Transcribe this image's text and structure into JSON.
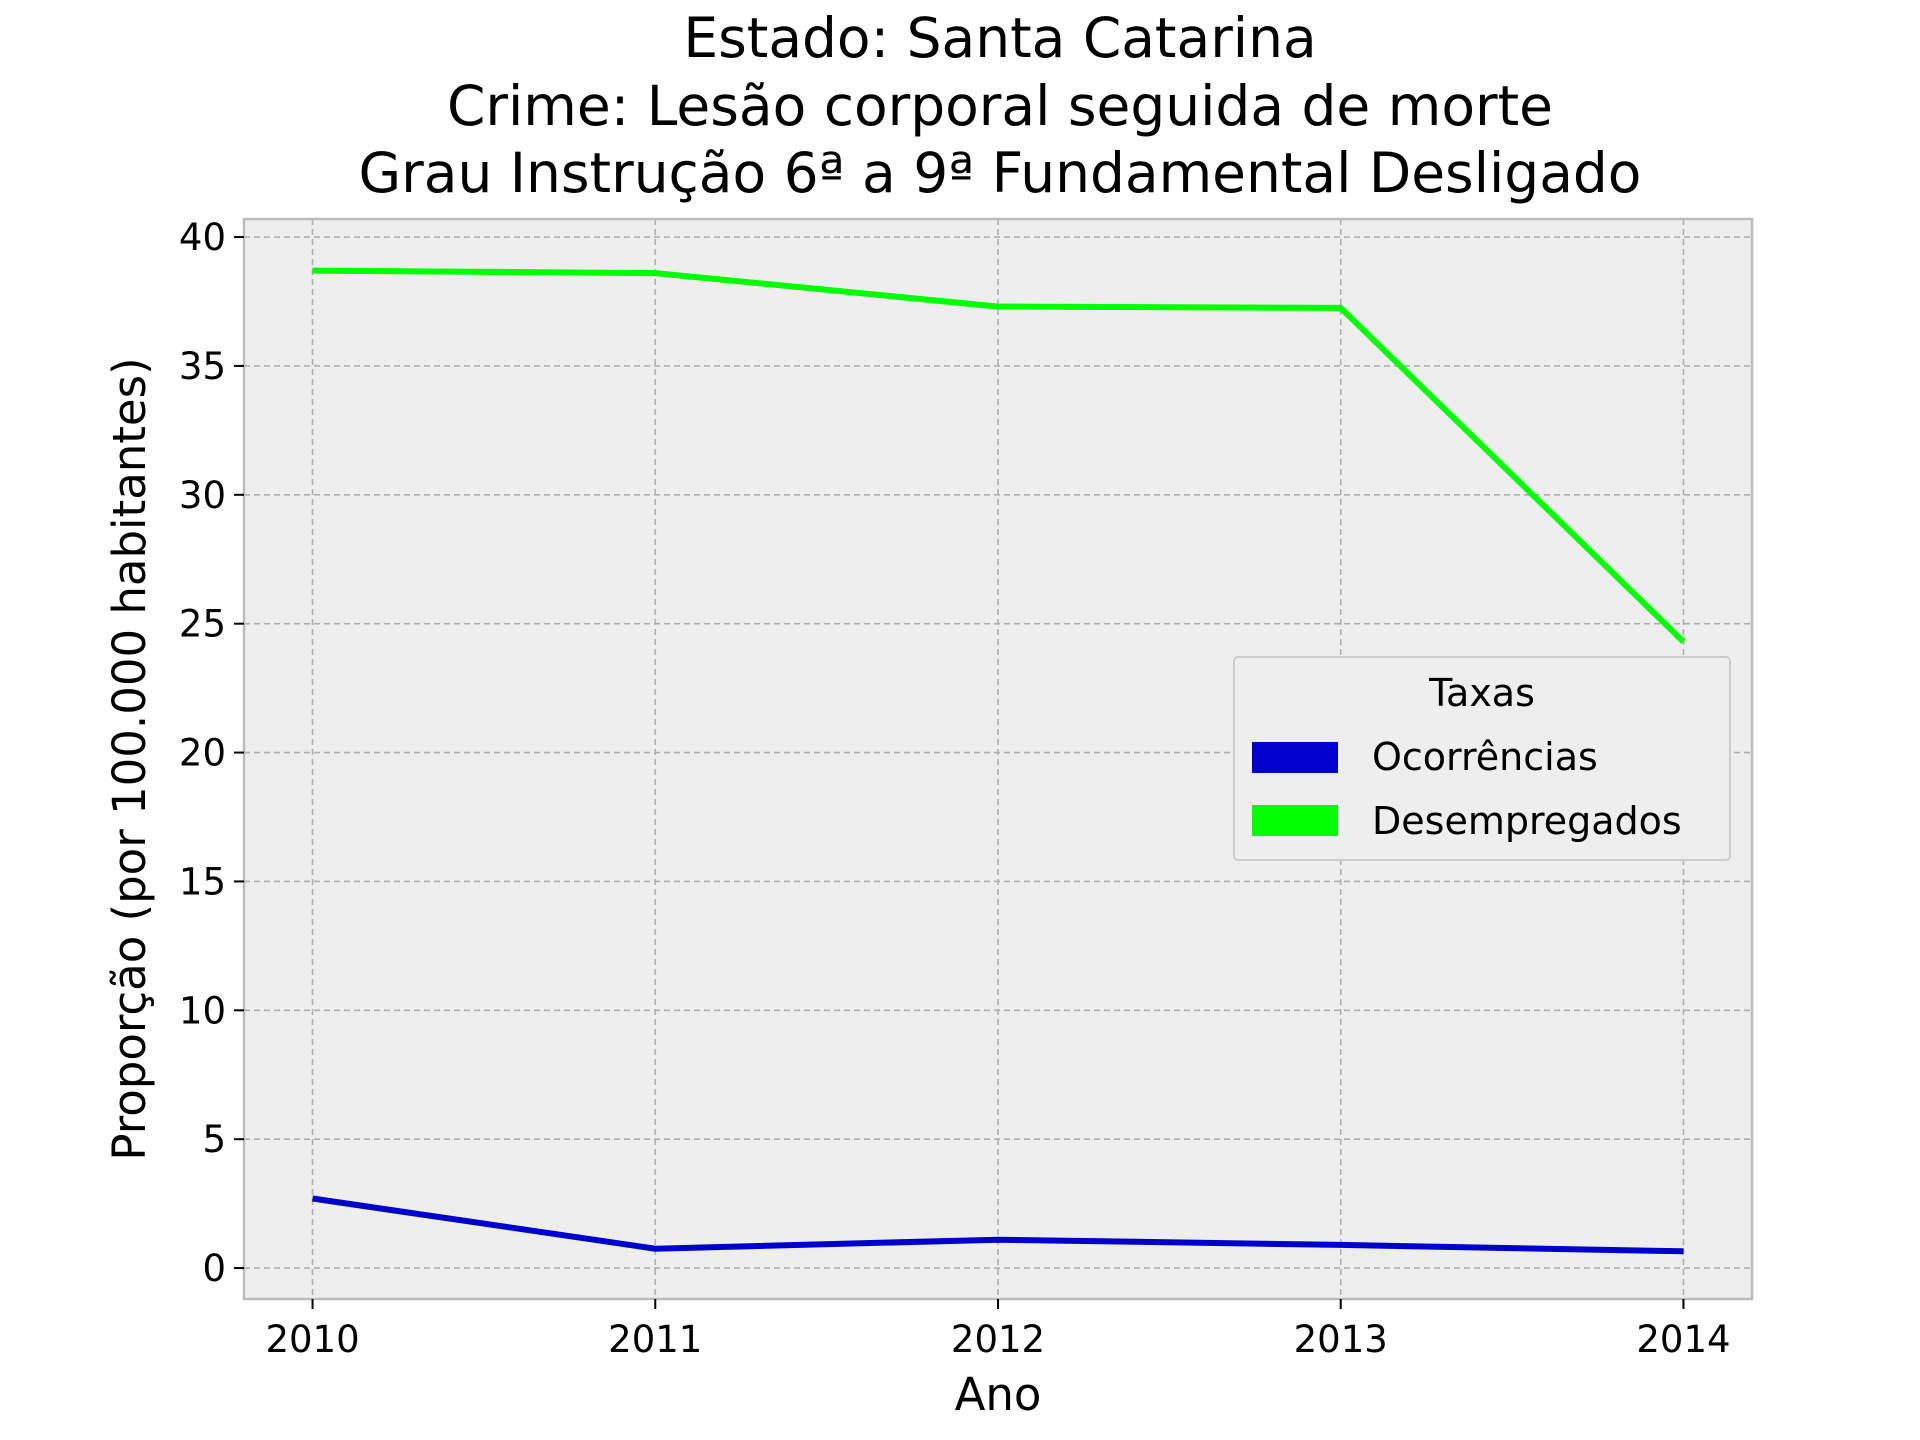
{
  "chart_data": {
    "type": "line",
    "title_lines": [
      "Estado: Santa Catarina",
      "Crime: Lesão corporal seguida de morte",
      "Grau Instrução  6ª a 9ª Fundamental   Desligado"
    ],
    "xlabel": "Ano",
    "ylabel": "Proporção (por 100.000 habitantes)",
    "x": [
      "2010",
      "2011",
      "2012",
      "2013",
      "2014"
    ],
    "xlim": [
      -0.2,
      4.2
    ],
    "ylim": [
      -1.2,
      40.7
    ],
    "yticks": [
      0,
      5,
      10,
      15,
      20,
      25,
      30,
      35,
      40
    ],
    "grid": true,
    "background": "#eeeeee",
    "legend": {
      "title": "Taxas",
      "placement": "center-right"
    },
    "series": [
      {
        "name": "Ocorrências",
        "color": "#0000cc",
        "values": [
          2.7,
          0.75,
          1.1,
          0.9,
          0.65
        ]
      },
      {
        "name": "Desempregados",
        "color": "#00ff00",
        "values": [
          38.7,
          38.6,
          37.3,
          37.25,
          24.3
        ]
      }
    ]
  }
}
